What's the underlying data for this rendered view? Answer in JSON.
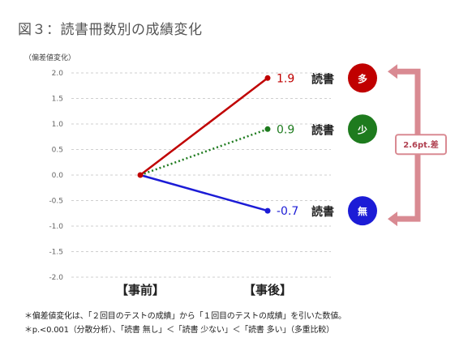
{
  "title": "図３：読書冊数別の成績変化",
  "notes": [
    "＊偏差値変化は、「２回目のテストの成績」から「１回目のテストの成績」を引いた数値。",
    "＊p.<0.001（分散分析）、「読書 無し」＜「読書 少ない」＜「読書 多い」（多重比較）"
  ],
  "chart_data": {
    "type": "line",
    "ylabel": "（偏差値変化）",
    "ylim": [
      -2.0,
      2.0
    ],
    "yticks": [
      "2.0",
      "1.5",
      "1.0",
      "0.5",
      "0.0",
      "-0.5",
      "-1.0",
      "-1.5",
      "-2.0"
    ],
    "ytick_values": [
      2.0,
      1.5,
      1.0,
      0.5,
      0.0,
      -0.5,
      -1.0,
      -1.5,
      -2.0
    ],
    "categories": [
      "【事前】",
      "【事後】"
    ],
    "grid": true,
    "series": [
      {
        "label": "読書",
        "badge": "多",
        "values": [
          0.0,
          1.9
        ],
        "value_label": "1.9",
        "color": "#c00000",
        "line_style": "solid"
      },
      {
        "label": "読書",
        "badge": "少",
        "values": [
          0.0,
          0.9
        ],
        "value_label": "0.9",
        "color": "#1e7b1e",
        "line_style": "dotted"
      },
      {
        "label": "読書",
        "badge": "無",
        "values": [
          0.0,
          -0.7
        ],
        "value_label": "-0.7",
        "color": "#1c1cd6",
        "line_style": "solid"
      }
    ],
    "annotation": {
      "text": "2.6pt.差",
      "color": "#d98a92"
    }
  }
}
